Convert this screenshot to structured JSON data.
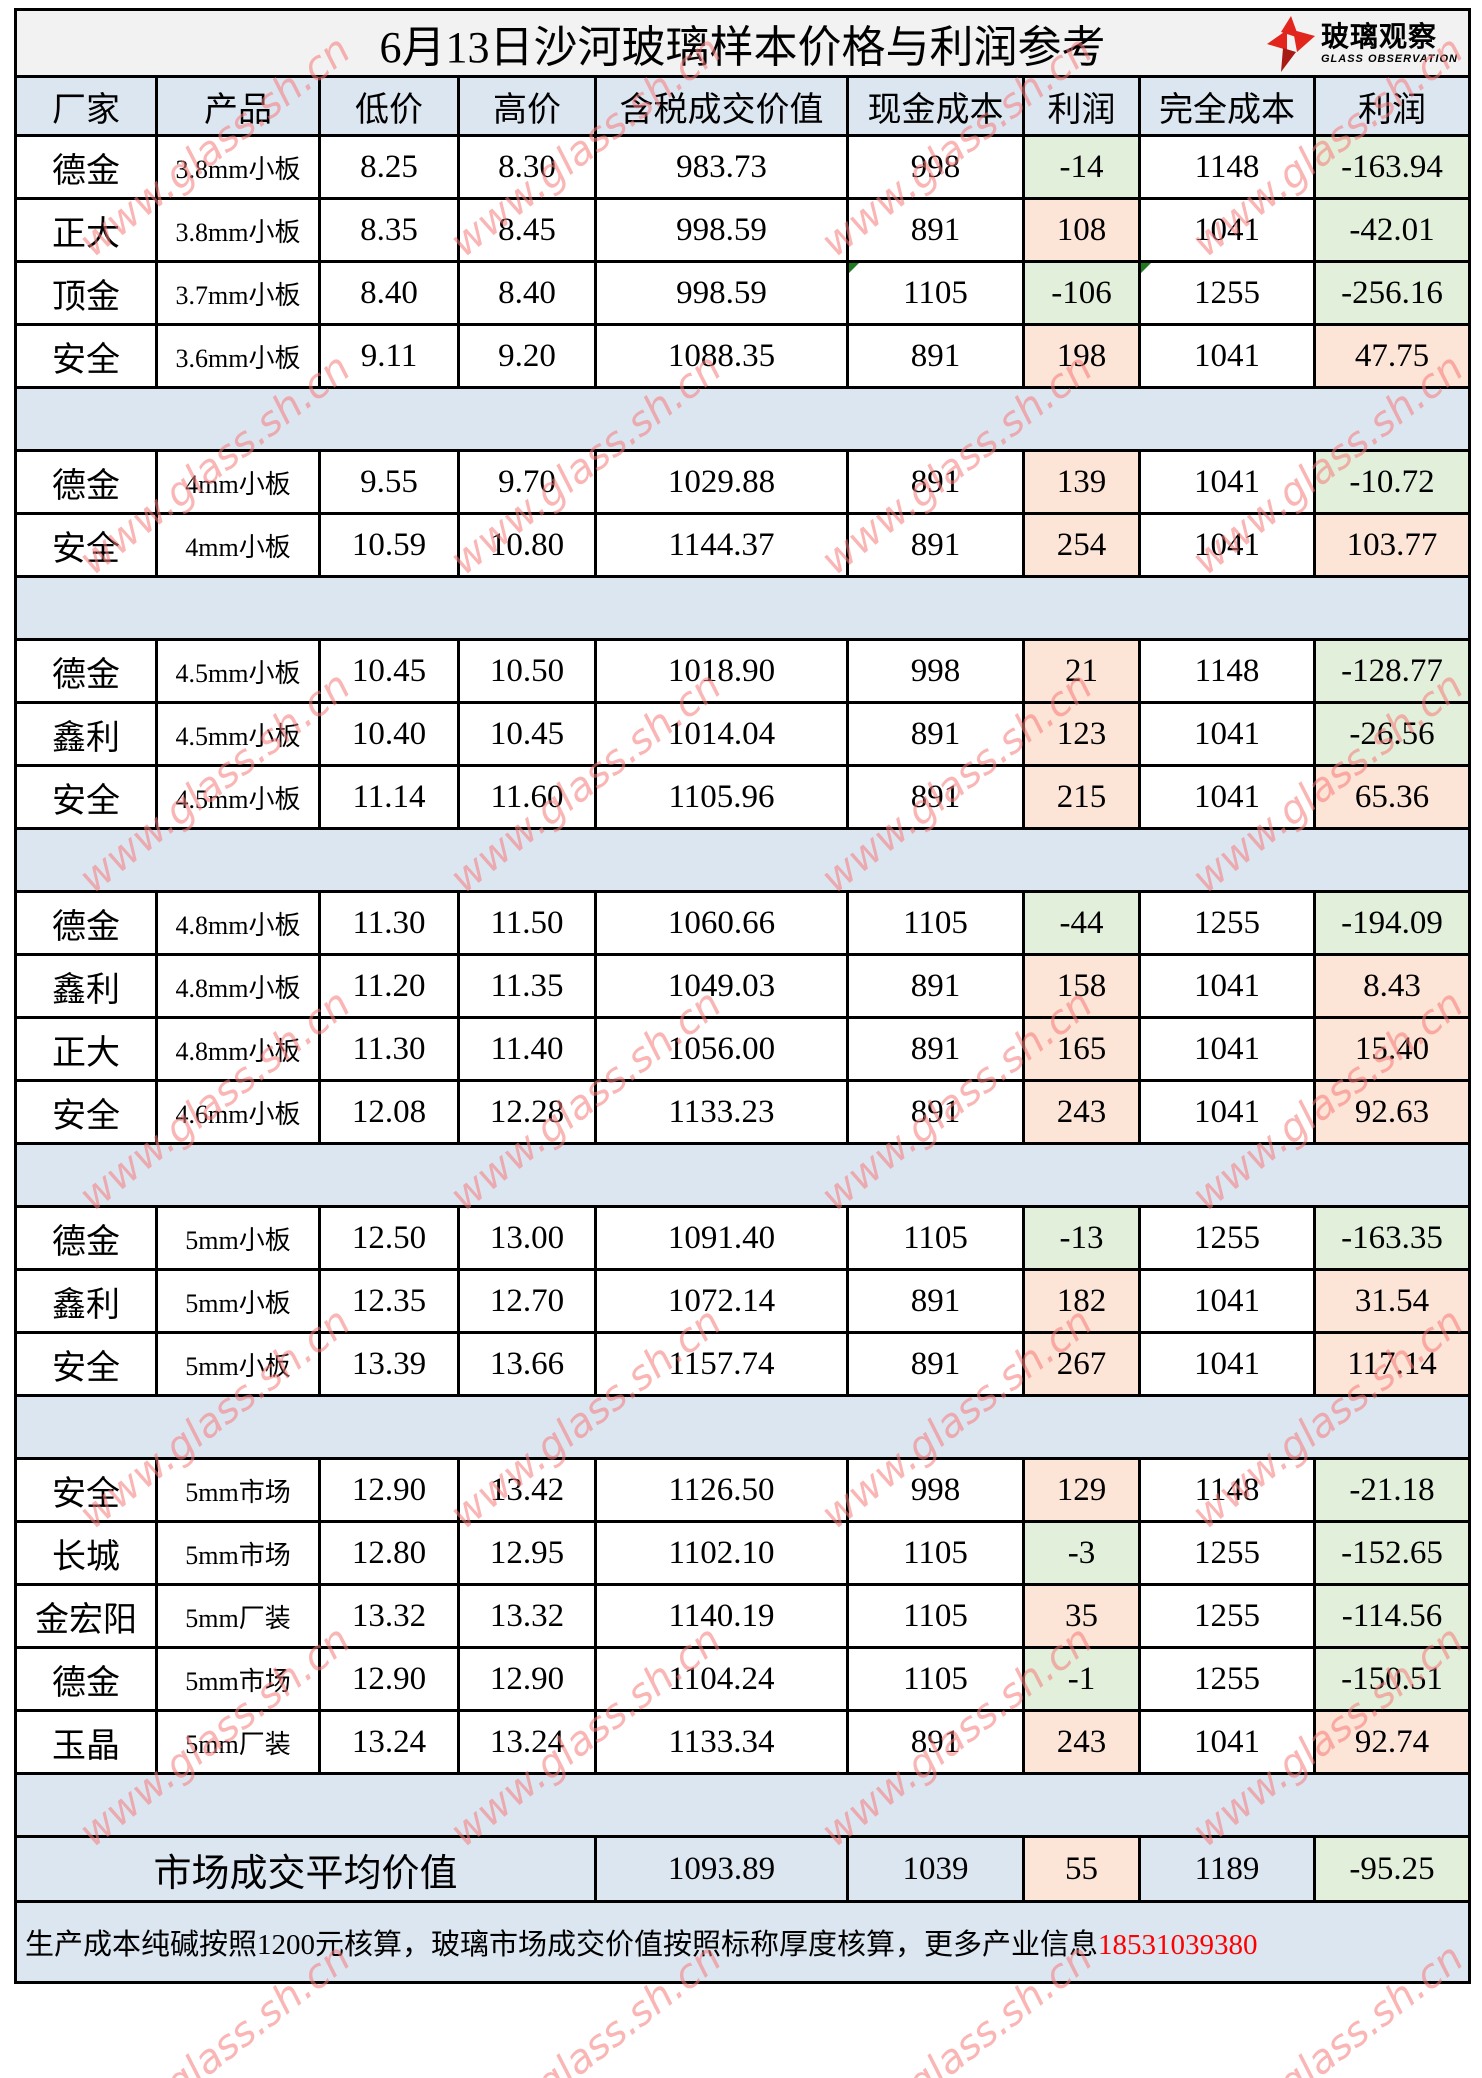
{
  "title": "6月13日沙河玻璃样本价格与利润参考",
  "logo": {
    "cn": "玻璃观察",
    "en": "GLASS OBSERVATION"
  },
  "watermark": {
    "text": "www.glass.sh.cn"
  },
  "colors": {
    "profit_positive_bg": "#fce4d6",
    "profit_negative_bg": "#e2efda",
    "header_bg": "#dce6f1",
    "title_bg": "#f2f2f2",
    "phone_red": "#ff0000",
    "error_marker_green": "#1f7a1f"
  },
  "table": {
    "columns": [
      "厂家",
      "产品",
      "低价",
      "高价",
      "含税成交价值",
      "现金成本",
      "利润",
      "完全成本",
      "利润"
    ],
    "rows": [
      {
        "factory": "德金",
        "product": "3.8mm小板",
        "low": "8.25",
        "high": "8.30",
        "value": "983.73",
        "cash_cost": "998",
        "profit1": "-14",
        "full_cost": "1148",
        "profit2": "-163.94"
      },
      {
        "factory": "正大",
        "product": "3.8mm小板",
        "low": "8.35",
        "high": "8.45",
        "value": "998.59",
        "cash_cost": "891",
        "profit1": "108",
        "full_cost": "1041",
        "profit2": "-42.01"
      },
      {
        "factory": "顶金",
        "product": "3.7mm小板",
        "low": "8.40",
        "high": "8.40",
        "value": "998.59",
        "cash_cost": "1105",
        "profit1": "-106",
        "full_cost": "1255",
        "profit2": "-256.16",
        "markers": [
          "cash_cost",
          "full_cost"
        ]
      },
      {
        "factory": "安全",
        "product": "3.6mm小板",
        "low": "9.11",
        "high": "9.20",
        "value": "1088.35",
        "cash_cost": "891",
        "profit1": "198",
        "full_cost": "1041",
        "profit2": "47.75"
      },
      {
        "type": "separator"
      },
      {
        "factory": "德金",
        "product": "4mm小板",
        "low": "9.55",
        "high": "9.70",
        "value": "1029.88",
        "cash_cost": "891",
        "profit1": "139",
        "full_cost": "1041",
        "profit2": "-10.72"
      },
      {
        "factory": "安全",
        "product": "4mm小板",
        "low": "10.59",
        "high": "10.80",
        "value": "1144.37",
        "cash_cost": "891",
        "profit1": "254",
        "full_cost": "1041",
        "profit2": "103.77"
      },
      {
        "type": "separator"
      },
      {
        "factory": "德金",
        "product": "4.5mm小板",
        "low": "10.45",
        "high": "10.50",
        "value": "1018.90",
        "cash_cost": "998",
        "profit1": "21",
        "full_cost": "1148",
        "profit2": "-128.77"
      },
      {
        "factory": "鑫利",
        "product": "4.5mm小板",
        "low": "10.40",
        "high": "10.45",
        "value": "1014.04",
        "cash_cost": "891",
        "profit1": "123",
        "full_cost": "1041",
        "profit2": "-26.56"
      },
      {
        "factory": "安全",
        "product": "4.5mm小板",
        "low": "11.14",
        "high": "11.60",
        "value": "1105.96",
        "cash_cost": "891",
        "profit1": "215",
        "full_cost": "1041",
        "profit2": "65.36"
      },
      {
        "type": "separator"
      },
      {
        "factory": "德金",
        "product": "4.8mm小板",
        "low": "11.30",
        "high": "11.50",
        "value": "1060.66",
        "cash_cost": "1105",
        "profit1": "-44",
        "full_cost": "1255",
        "profit2": "-194.09"
      },
      {
        "factory": "鑫利",
        "product": "4.8mm小板",
        "low": "11.20",
        "high": "11.35",
        "value": "1049.03",
        "cash_cost": "891",
        "profit1": "158",
        "full_cost": "1041",
        "profit2": "8.43"
      },
      {
        "factory": "正大",
        "product": "4.8mm小板",
        "low": "11.30",
        "high": "11.40",
        "value": "1056.00",
        "cash_cost": "891",
        "profit1": "165",
        "full_cost": "1041",
        "profit2": "15.40"
      },
      {
        "factory": "安全",
        "product": "4.6mm小板",
        "low": "12.08",
        "high": "12.28",
        "value": "1133.23",
        "cash_cost": "891",
        "profit1": "243",
        "full_cost": "1041",
        "profit2": "92.63"
      },
      {
        "type": "separator"
      },
      {
        "factory": "德金",
        "product": "5mm小板",
        "low": "12.50",
        "high": "13.00",
        "value": "1091.40",
        "cash_cost": "1105",
        "profit1": "-13",
        "full_cost": "1255",
        "profit2": "-163.35"
      },
      {
        "factory": "鑫利",
        "product": "5mm小板",
        "low": "12.35",
        "high": "12.70",
        "value": "1072.14",
        "cash_cost": "891",
        "profit1": "182",
        "full_cost": "1041",
        "profit2": "31.54"
      },
      {
        "factory": "安全",
        "product": "5mm小板",
        "low": "13.39",
        "high": "13.66",
        "value": "1157.74",
        "cash_cost": "891",
        "profit1": "267",
        "full_cost": "1041",
        "profit2": "117.14"
      },
      {
        "type": "separator"
      },
      {
        "factory": "安全",
        "product": "5mm市场",
        "low": "12.90",
        "high": "13.42",
        "value": "1126.50",
        "cash_cost": "998",
        "profit1": "129",
        "full_cost": "1148",
        "profit2": "-21.18"
      },
      {
        "factory": "长城",
        "product": "5mm市场",
        "low": "12.80",
        "high": "12.95",
        "value": "1102.10",
        "cash_cost": "1105",
        "profit1": "-3",
        "full_cost": "1255",
        "profit2": "-152.65"
      },
      {
        "factory": "金宏阳",
        "product": "5mm厂装",
        "low": "13.32",
        "high": "13.32",
        "value": "1140.19",
        "cash_cost": "1105",
        "profit1": "35",
        "full_cost": "1255",
        "profit2": "-114.56"
      },
      {
        "factory": "德金",
        "product": "5mm市场",
        "low": "12.90",
        "high": "12.90",
        "value": "1104.24",
        "cash_cost": "1105",
        "profit1": "-1",
        "full_cost": "1255",
        "profit2": "-150.51"
      },
      {
        "factory": "玉晶",
        "product": "5mm厂装",
        "low": "13.24",
        "high": "13.24",
        "value": "1133.34",
        "cash_cost": "891",
        "profit1": "243",
        "full_cost": "1041",
        "profit2": "92.74"
      },
      {
        "type": "separator"
      }
    ],
    "summary": {
      "label": "市场成交平均价值",
      "value": "1093.89",
      "cash_cost": "1039",
      "profit1": "55",
      "full_cost": "1189",
      "profit2": "-95.25"
    },
    "footer": {
      "text": "生产成本纯碱按照1200元核算，玻璃市场成交价值按照标称厚度核算，更多产业信息",
      "phone": "18531039380"
    }
  }
}
